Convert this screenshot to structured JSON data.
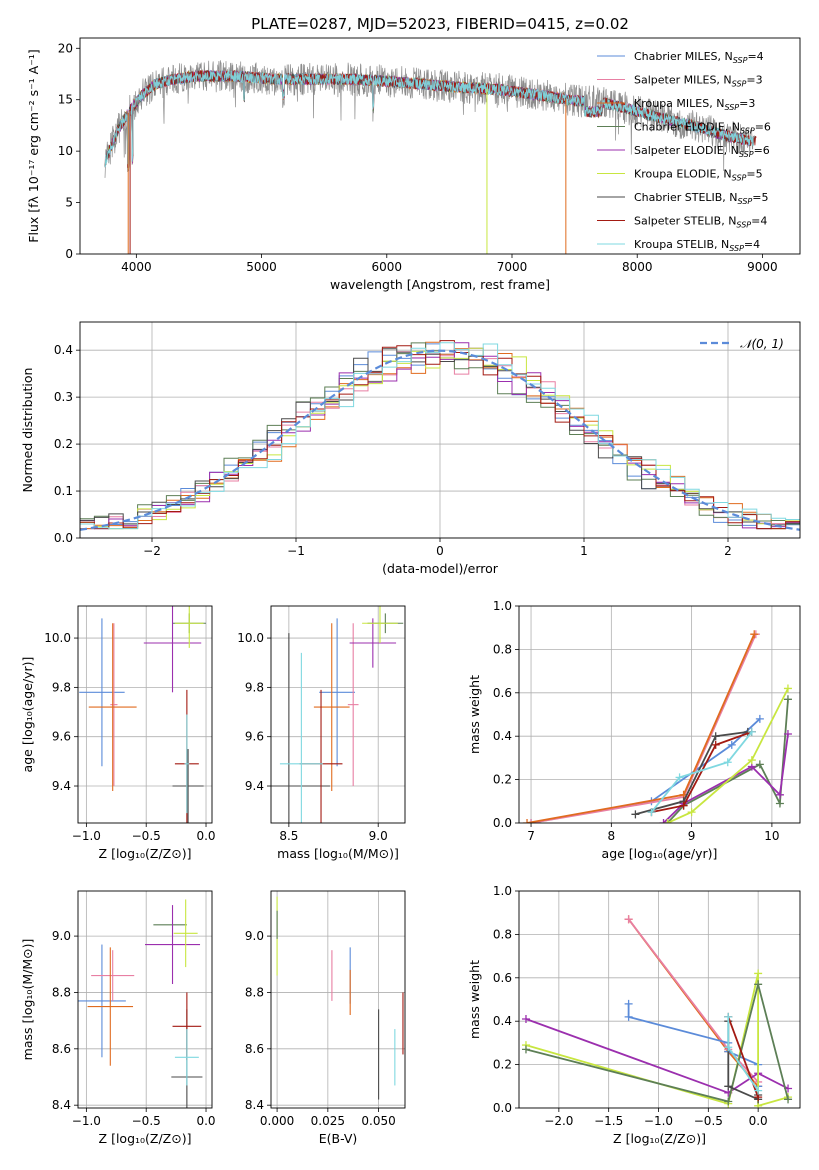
{
  "figure_title": "PLATE=0287, MJD=52023, FIBERID=0415, z=0.02",
  "colors": {
    "chabrier_miles": "#5b8bd9",
    "salpeter_miles": "#e87fa3",
    "kroupa_miles": "#e06b1f",
    "chabrier_elodie": "#5d7f56",
    "salpeter_elodie": "#9b2fae",
    "kroupa_elodie": "#c8e640",
    "chabrier_stelib": "#4a4a4a",
    "salpeter_stelib": "#a31a12",
    "kroupa_stelib": "#7fd8e0",
    "data_gray": "#808080",
    "normal_curve": "#5b8bd9",
    "grid": "#b0b0b0"
  },
  "chart_data": [
    {
      "id": "spectrum",
      "type": "line",
      "xlabel": "wavelength [Angstrom, rest frame]",
      "ylabel": "Flux [fλ 10⁻¹⁷ erg cm⁻² s⁻¹ A⁻¹]",
      "xlim": [
        3550,
        9300
      ],
      "ylim": [
        0,
        21
      ],
      "xticks": [
        4000,
        5000,
        6000,
        7000,
        8000,
        9000
      ],
      "yticks": [
        0,
        5,
        10,
        15,
        20
      ],
      "grid": false,
      "legend_position": "top-right",
      "legend": [
        {
          "label": "Chabrier MILES, N",
          "sub": "SSP",
          "suffix": "=4"
        },
        {
          "label": "Salpeter MILES, N",
          "sub": "SSP",
          "suffix": "=3"
        },
        {
          "label": "Kroupa MILES, N",
          "sub": "SSP",
          "suffix": "=3"
        },
        {
          "label": "Chabrier ELODIE, N",
          "sub": "SSP",
          "suffix": "=6"
        },
        {
          "label": "Salpeter ELODIE, N",
          "sub": "SSP",
          "suffix": "=6"
        },
        {
          "label": "Kroupa ELODIE, N",
          "sub": "SSP",
          "suffix": "=5"
        },
        {
          "label": "Chabrier STELIB, N",
          "sub": "SSP",
          "suffix": "=5"
        },
        {
          "label": "Salpeter STELIB, N",
          "sub": "SSP",
          "suffix": "=4"
        },
        {
          "label": "Kroupa STELIB, N",
          "sub": "SSP",
          "suffix": "=4"
        }
      ],
      "continuum": {
        "x": [
          3750,
          3850,
          3950,
          4050,
          4150,
          4300,
          4500,
          4800,
          5100,
          5400,
          5700,
          6000,
          6300,
          6600,
          6900,
          7200,
          7500,
          7700,
          7900,
          8100,
          8300,
          8500,
          8700,
          8900
        ],
        "y": [
          9.0,
          12.0,
          14.0,
          15.5,
          16.5,
          17.0,
          17.3,
          17.3,
          17.0,
          17.0,
          17.0,
          16.8,
          16.5,
          16.2,
          16.0,
          15.5,
          14.9,
          14.8,
          14.2,
          13.5,
          12.9,
          12.3,
          11.5,
          11.0
        ]
      }
    },
    {
      "id": "residuals",
      "type": "histogram",
      "xlabel": "(data-model)/error",
      "ylabel": "Normed distribution",
      "xlim": [
        -2.5,
        2.5
      ],
      "ylim": [
        0,
        0.46
      ],
      "xticks": [
        -2,
        -1,
        0,
        1,
        2
      ],
      "xtick_labels": [
        "−2",
        "−1",
        "0",
        "1",
        "2"
      ],
      "yticks": [
        0.0,
        0.1,
        0.2,
        0.3,
        0.4
      ],
      "ytick_labels": [
        "0.0",
        "0.1",
        "0.2",
        "0.3",
        "0.4"
      ],
      "grid": true,
      "legend_position": "top-right",
      "legend": [
        {
          "label": "𝒩(0, 1)"
        }
      ],
      "normal_curve": {
        "mean": 0,
        "sd": 1
      }
    },
    {
      "id": "age-vs-Z",
      "type": "errorbar",
      "xlabel": "Z [log₁₀(Z/Z⊙)]",
      "ylabel": "age  [log₁₀(age/yr)]",
      "xlim": [
        -1.07,
        0.05
      ],
      "ylim": [
        9.25,
        10.13
      ],
      "xticks": [
        -1.0,
        -0.5,
        0.0
      ],
      "xtick_labels": [
        "−1.0",
        "−0.5",
        "0.0"
      ],
      "yticks": [
        9.4,
        9.6,
        9.8,
        10.0
      ],
      "ytick_labels": [
        "9.4",
        "9.6",
        "9.8",
        "10.0"
      ],
      "grid": true,
      "points": [
        {
          "model": "chabrier_miles",
          "x": -0.87,
          "xerr": 0.19,
          "y": 9.78,
          "yerr": 0.3
        },
        {
          "model": "salpeter_miles",
          "x": -0.77,
          "xerr": 0.03,
          "y": 9.73,
          "yerr": 0.33
        },
        {
          "model": "kroupa_miles",
          "x": -0.78,
          "xerr": 0.2,
          "y": 9.72,
          "yerr": 0.34
        },
        {
          "model": "chabrier_elodie",
          "x": -0.14,
          "xerr": 0.14,
          "y": 10.06,
          "yerr": 0.04
        },
        {
          "model": "salpeter_elodie",
          "x": -0.28,
          "xerr": 0.24,
          "y": 9.98,
          "yerr": 0.2
        },
        {
          "model": "kroupa_elodie",
          "x": -0.14,
          "xerr": 0.12,
          "y": 10.06,
          "yerr": 0.1
        },
        {
          "model": "chabrier_stelib",
          "x": -0.15,
          "xerr": 0.13,
          "y": 9.4,
          "yerr": 0.15
        },
        {
          "model": "salpeter_stelib",
          "x": -0.16,
          "xerr": 0.1,
          "y": 9.49,
          "yerr": 0.3
        },
        {
          "model": "kroupa_stelib",
          "x": -0.16,
          "xerr": 0.02,
          "y": 9.49,
          "yerr": 0.2
        }
      ]
    },
    {
      "id": "age-vs-mass",
      "type": "errorbar",
      "xlabel": "mass [log₁₀(M/M⊙)]",
      "ylabel": "",
      "xlim": [
        8.4,
        9.15
      ],
      "ylim": [
        9.25,
        10.13
      ],
      "xticks": [
        8.5,
        9.0
      ],
      "xtick_labels": [
        "8.5",
        "9.0"
      ],
      "yticks": [
        9.4,
        9.6,
        9.8,
        10.0
      ],
      "ytick_labels": [
        "9.4",
        "9.6",
        "9.8",
        "10.0"
      ],
      "grid": true,
      "points": [
        {
          "model": "chabrier_miles",
          "x": 8.77,
          "xerr": 0.1,
          "y": 9.78,
          "yerr": 0.3
        },
        {
          "model": "salpeter_miles",
          "x": 8.86,
          "xerr": 0.03,
          "y": 9.73,
          "yerr": 0.33
        },
        {
          "model": "kroupa_miles",
          "x": 8.74,
          "xerr": 0.1,
          "y": 9.72,
          "yerr": 0.34
        },
        {
          "model": "chabrier_elodie",
          "x": 9.04,
          "xerr": 0.1,
          "y": 10.06,
          "yerr": 0.04
        },
        {
          "model": "salpeter_elodie",
          "x": 8.97,
          "xerr": 0.13,
          "y": 9.98,
          "yerr": 0.1
        },
        {
          "model": "kroupa_elodie",
          "x": 9.01,
          "xerr": 0.1,
          "y": 10.06,
          "yerr": 0.08
        },
        {
          "model": "chabrier_stelib",
          "x": 8.5,
          "xerr": 0.23,
          "y": 9.4,
          "yerr": 0.62
        },
        {
          "model": "salpeter_stelib",
          "x": 8.68,
          "xerr": 0.12,
          "y": 9.49,
          "yerr": 0.3
        },
        {
          "model": "kroupa_stelib",
          "x": 8.57,
          "xerr": 0.12,
          "y": 9.49,
          "yerr": 0.45
        }
      ]
    },
    {
      "id": "mass-weight-vs-age",
      "type": "line",
      "xlabel": "age  [log₁₀(age/yr)]",
      "ylabel": "mass weight",
      "xlim": [
        6.85,
        10.35
      ],
      "ylim": [
        0,
        1.0
      ],
      "xticks": [
        7,
        8,
        9,
        10
      ],
      "xtick_labels": [
        "7",
        "8",
        "9",
        "10"
      ],
      "yticks": [
        0.0,
        0.2,
        0.4,
        0.6,
        0.8,
        1.0
      ],
      "ytick_labels": [
        "0.0",
        "0.2",
        "0.4",
        "0.6",
        "0.8",
        "1.0"
      ],
      "grid": true,
      "series": [
        {
          "model": "chabrier_miles",
          "x": [
            7.0,
            8.5,
            9.5,
            9.85
          ],
          "y": [
            0.0,
            0.1,
            0.36,
            0.48
          ]
        },
        {
          "model": "salpeter_miles",
          "x": [
            7.0,
            8.9,
            9.8
          ],
          "y": [
            0.0,
            0.12,
            0.87
          ]
        },
        {
          "model": "kroupa_miles",
          "x": [
            6.95,
            8.9,
            9.78
          ],
          "y": [
            0.0,
            0.13,
            0.87
          ]
        },
        {
          "model": "chabrier_elodie",
          "x": [
            8.7,
            8.9,
            9.85,
            10.1,
            10.2
          ],
          "y": [
            0.0,
            0.08,
            0.27,
            0.09,
            0.57
          ]
        },
        {
          "model": "salpeter_elodie",
          "x": [
            8.65,
            8.9,
            9.75,
            10.1,
            10.2
          ],
          "y": [
            0.0,
            0.09,
            0.26,
            0.13,
            0.41
          ]
        },
        {
          "model": "kroupa_elodie",
          "x": [
            8.7,
            9.0,
            9.75,
            10.2
          ],
          "y": [
            0.0,
            0.05,
            0.29,
            0.62
          ]
        },
        {
          "model": "chabrier_stelib",
          "x": [
            8.3,
            8.9,
            9.3,
            9.7
          ],
          "y": [
            0.04,
            0.1,
            0.4,
            0.42
          ]
        },
        {
          "model": "salpeter_stelib",
          "x": [
            8.5,
            8.9,
            9.3,
            9.75
          ],
          "y": [
            0.05,
            0.08,
            0.36,
            0.42
          ]
        },
        {
          "model": "kroupa_stelib",
          "x": [
            8.5,
            8.85,
            9.45,
            9.75
          ],
          "y": [
            0.05,
            0.21,
            0.28,
            0.42
          ]
        }
      ]
    },
    {
      "id": "mass-vs-Z",
      "type": "errorbar",
      "xlabel": "Z [log₁₀(Z/Z⊙)]",
      "ylabel": "mass [log₁₀(M/M⊙)]",
      "xlim": [
        -1.07,
        0.05
      ],
      "ylim": [
        8.39,
        9.16
      ],
      "xticks": [
        -1.0,
        -0.5,
        0.0
      ],
      "xtick_labels": [
        "−1.0",
        "−0.5",
        "0.0"
      ],
      "yticks": [
        8.4,
        8.6,
        8.8,
        9.0
      ],
      "ytick_labels": [
        "8.4",
        "8.6",
        "8.8",
        "9.0"
      ],
      "grid": true,
      "points": [
        {
          "model": "chabrier_miles",
          "x": -0.87,
          "xerr": 0.2,
          "y": 8.77,
          "yerr": 0.2
        },
        {
          "model": "salpeter_miles",
          "x": -0.78,
          "xerr": 0.18,
          "y": 8.86,
          "yerr": 0.09
        },
        {
          "model": "kroupa_miles",
          "x": -0.8,
          "xerr": 0.19,
          "y": 8.75,
          "yerr": 0.21
        },
        {
          "model": "chabrier_elodie",
          "x": -0.3,
          "xerr": 0.14,
          "y": 9.04,
          "yerr": 0.0
        },
        {
          "model": "salpeter_elodie",
          "x": -0.28,
          "xerr": 0.23,
          "y": 8.97,
          "yerr": 0.14
        },
        {
          "model": "kroupa_elodie",
          "x": -0.17,
          "xerr": 0.1,
          "y": 9.01,
          "yerr": 0.12
        },
        {
          "model": "chabrier_stelib",
          "x": -0.16,
          "xerr": 0.13,
          "y": 8.5,
          "yerr": 0.24
        },
        {
          "model": "salpeter_stelib",
          "x": -0.16,
          "xerr": 0.12,
          "y": 8.68,
          "yerr": 0.12
        },
        {
          "model": "kroupa_stelib",
          "x": -0.16,
          "xerr": 0.1,
          "y": 8.57,
          "yerr": 0.1
        }
      ]
    },
    {
      "id": "mass-vs-EBV",
      "type": "errorbar",
      "xlabel": "E(B-V)",
      "ylabel": "",
      "xlim": [
        -0.003,
        0.063
      ],
      "ylim": [
        8.39,
        9.16
      ],
      "xticks": [
        0.0,
        0.025,
        0.05
      ],
      "xtick_labels": [
        "0.000",
        "0.025",
        "0.050"
      ],
      "yticks": [
        8.4,
        8.6,
        8.8,
        9.0
      ],
      "ytick_labels": [
        "8.4",
        "8.6",
        "8.8",
        "9.0"
      ],
      "grid": true,
      "points": [
        {
          "model": "kroupa_elodie",
          "x": 0.0,
          "xerr": 0.0,
          "y": 9.0,
          "yerr": 0.14
        },
        {
          "model": "chabrier_elodie",
          "x": 0.0,
          "xerr": 0.0,
          "y": 9.04,
          "yerr": 0.05
        },
        {
          "model": "salpeter_miles",
          "x": 0.027,
          "xerr": 0.0,
          "y": 8.86,
          "yerr": 0.09
        },
        {
          "model": "chabrier_miles",
          "x": 0.036,
          "xerr": 0.0,
          "y": 8.86,
          "yerr": 0.1
        },
        {
          "model": "kroupa_miles",
          "x": 0.036,
          "xerr": 0.0,
          "y": 8.8,
          "yerr": 0.08
        },
        {
          "model": "chabrier_stelib",
          "x": 0.05,
          "xerr": 0.0,
          "y": 8.58,
          "yerr": 0.16
        },
        {
          "model": "kroupa_stelib",
          "x": 0.058,
          "xerr": 0.0,
          "y": 8.57,
          "yerr": 0.1
        },
        {
          "model": "salpeter_stelib",
          "x": 0.062,
          "xerr": 0.0,
          "y": 8.69,
          "yerr": 0.11
        }
      ]
    },
    {
      "id": "mass-weight-vs-Z",
      "type": "line",
      "xlabel": "Z [log₁₀(Z/Z⊙)]",
      "ylabel": "mass weight",
      "xlim": [
        -2.4,
        0.42
      ],
      "ylim": [
        0,
        1.0
      ],
      "xticks": [
        -2.0,
        -1.5,
        -1.0,
        -0.5,
        0.0
      ],
      "xtick_labels": [
        "−2.0",
        "−1.5",
        "−1.0",
        "−0.5",
        "0.0"
      ],
      "yticks": [
        0.0,
        0.2,
        0.4,
        0.6,
        0.8,
        1.0
      ],
      "ytick_labels": [
        "0.0",
        "0.2",
        "0.4",
        "0.6",
        "0.8",
        "1.0"
      ],
      "grid": true,
      "series": [
        {
          "model": "kroupa_miles",
          "x": [
            -1.3,
            -0.3,
            0.0
          ],
          "y": [
            0.87,
            0.26,
            0.1
          ]
        },
        {
          "model": "salpeter_miles",
          "x": [
            -1.3,
            -0.3,
            0.0
          ],
          "y": [
            0.87,
            0.27,
            0.12
          ]
        },
        {
          "model": "chabrier_miles",
          "x": [
            -1.3,
            -1.3,
            -0.3,
            -0.3,
            0.0,
            0.0
          ],
          "y": [
            0.48,
            0.42,
            0.3,
            0.26,
            0.2,
            0.1
          ]
        },
        {
          "model": "salpeter_elodie",
          "x": [
            -2.33,
            -0.3,
            0.0,
            0.3
          ],
          "y": [
            0.41,
            0.07,
            0.16,
            0.09
          ]
        },
        {
          "model": "kroupa_elodie",
          "x": [
            -2.33,
            -0.3,
            0.0,
            0.0,
            0.3
          ],
          "y": [
            0.29,
            0.02,
            0.62,
            0.01,
            0.05
          ]
        },
        {
          "model": "chabrier_elodie",
          "x": [
            -2.33,
            -0.3,
            0.0,
            0.3
          ],
          "y": [
            0.27,
            0.03,
            0.57,
            0.04
          ]
        },
        {
          "model": "chabrier_stelib",
          "x": [
            -0.3,
            -0.3,
            0.0,
            0.0
          ],
          "y": [
            0.4,
            0.1,
            0.04,
            0.06
          ]
        },
        {
          "model": "salpeter_stelib",
          "x": [
            -0.3,
            0.0
          ],
          "y": [
            0.42,
            0.05
          ]
        },
        {
          "model": "kroupa_stelib",
          "x": [
            -0.3,
            -0.3,
            0.0
          ],
          "y": [
            0.42,
            0.28,
            0.08
          ]
        }
      ]
    }
  ]
}
